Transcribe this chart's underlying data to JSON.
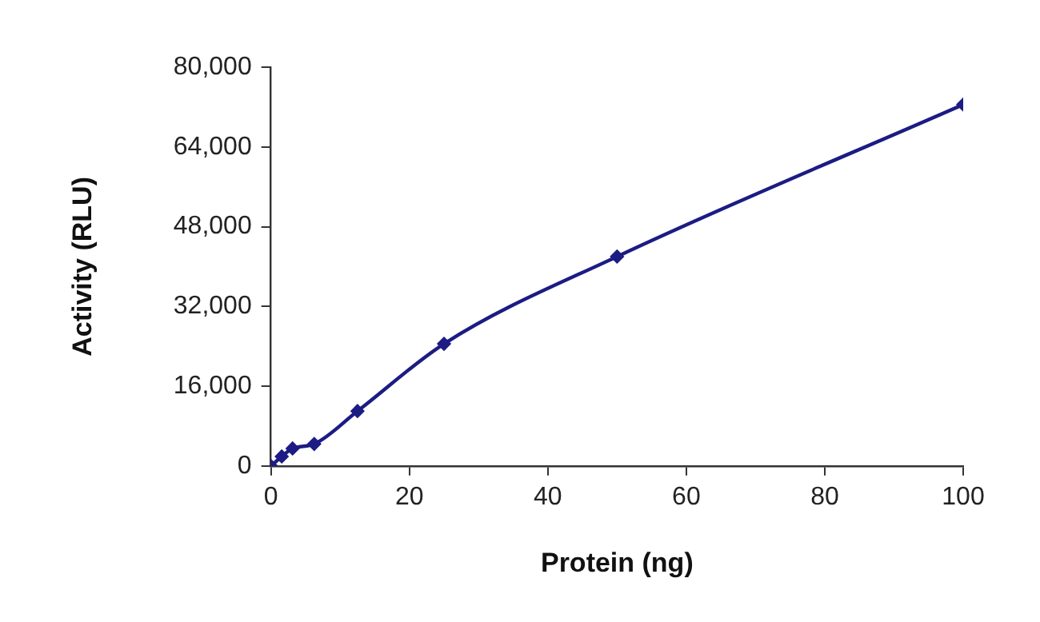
{
  "chart_data": {
    "type": "line",
    "xlabel": "Protein (ng)",
    "ylabel": "Activity (RLU)",
    "series": [
      {
        "color": "#1c1c84",
        "x": [
          0,
          1.56,
          3.125,
          6.25,
          12.5,
          25,
          50,
          100
        ],
        "values": [
          0,
          1900,
          3500,
          4400,
          11000,
          24500,
          42000,
          72500
        ]
      }
    ],
    "xlim": [
      0,
      100
    ],
    "xticks": [
      0,
      20,
      40,
      60,
      80,
      100
    ],
    "ylim": [
      0,
      80000
    ],
    "yticks": [
      {
        "value": 0,
        "label": "0"
      },
      {
        "value": 16000,
        "label": "16,000"
      },
      {
        "value": 32000,
        "label": "32,000"
      },
      {
        "value": 48000,
        "label": "48,000"
      },
      {
        "value": 64000,
        "label": "64,000"
      },
      {
        "value": 80000,
        "label": "80,000"
      }
    ],
    "grid": false,
    "legend": false,
    "marker": "diamond",
    "line_style": "solid"
  }
}
